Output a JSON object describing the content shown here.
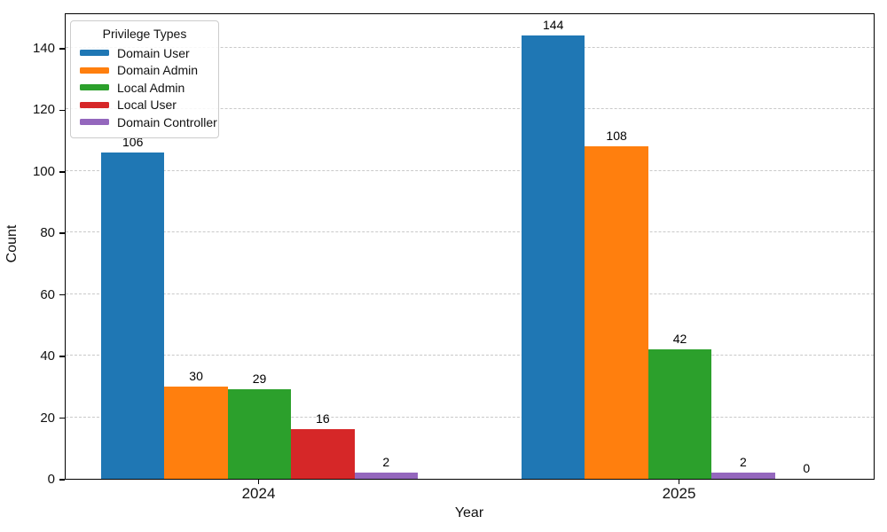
{
  "chart_data": {
    "type": "bar",
    "title": "",
    "xlabel": "Year",
    "ylabel": "Count",
    "categories": [
      "2024",
      "2025"
    ],
    "series": [
      {
        "name": "Domain User",
        "color": "#1f77b4",
        "values": [
          106,
          144
        ]
      },
      {
        "name": "Domain Admin",
        "color": "#ff7f0e",
        "values": [
          30,
          108
        ]
      },
      {
        "name": "Local Admin",
        "color": "#2ca02c",
        "values": [
          29,
          42
        ]
      },
      {
        "name": "Local User",
        "color": "#d62728",
        "values": [
          16,
          0
        ]
      },
      {
        "name": "Domain Controller",
        "color": "#9467bd",
        "values": [
          2,
          2
        ]
      }
    ],
    "legend": {
      "title": "Privilege Types",
      "position": "upper-left"
    },
    "yticks": [
      0,
      20,
      40,
      60,
      80,
      100,
      120,
      140
    ],
    "ylim": [
      0,
      151.5
    ],
    "grid": "horizontal-dashed",
    "bar_order_within_group": "descending-by-value",
    "value_labels": true,
    "frame": "full-box-black",
    "background_color": "#ffffff"
  }
}
